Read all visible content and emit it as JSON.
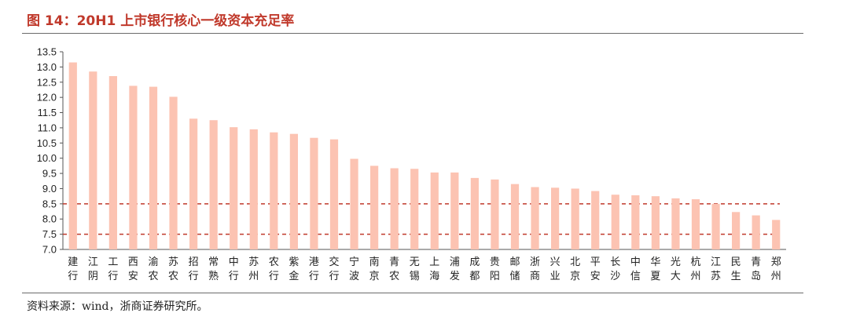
{
  "title": "图 14：20H1 上市银行核心一级资本充足率",
  "source": "资料来源：wind，浙商证券研究所。",
  "colors": {
    "bar": "#fcc3b2",
    "ref_line": "#c0392b",
    "title": "#c0392b"
  },
  "chart_data": {
    "type": "bar",
    "categories": [
      "建行",
      "江阴",
      "工行",
      "西安",
      "渝农",
      "苏农",
      "招行",
      "常熟",
      "中行",
      "苏州",
      "农行",
      "紫金",
      "港行",
      "交行",
      "宁波",
      "南京",
      "青农",
      "无锡",
      "上海",
      "浦发",
      "成都",
      "贵阳",
      "邮储",
      "浙商",
      "兴业",
      "北京",
      "平安",
      "长沙",
      "中信",
      "华夏",
      "光大",
      "杭州",
      "江苏",
      "民生",
      "青岛",
      "郑州"
    ],
    "values": [
      13.15,
      12.85,
      12.7,
      12.38,
      12.35,
      12.02,
      11.3,
      11.25,
      11.02,
      10.95,
      10.85,
      10.8,
      10.67,
      10.62,
      9.98,
      9.75,
      9.67,
      9.65,
      9.53,
      9.53,
      9.35,
      9.3,
      9.15,
      9.05,
      9.03,
      9.0,
      8.92,
      8.8,
      8.78,
      8.75,
      8.68,
      8.65,
      8.5,
      8.23,
      8.12,
      7.97
    ],
    "ylim": [
      7.0,
      13.5
    ],
    "yticks": [
      "7.0",
      "7.5",
      "8.0",
      "8.5",
      "9.0",
      "9.5",
      "10.0",
      "10.5",
      "11.0",
      "11.5",
      "12.0",
      "12.5",
      "13.0",
      "13.5"
    ],
    "reference_lines": [
      7.5,
      8.5
    ],
    "xlabel": "",
    "ylabel": "",
    "grid": false
  }
}
